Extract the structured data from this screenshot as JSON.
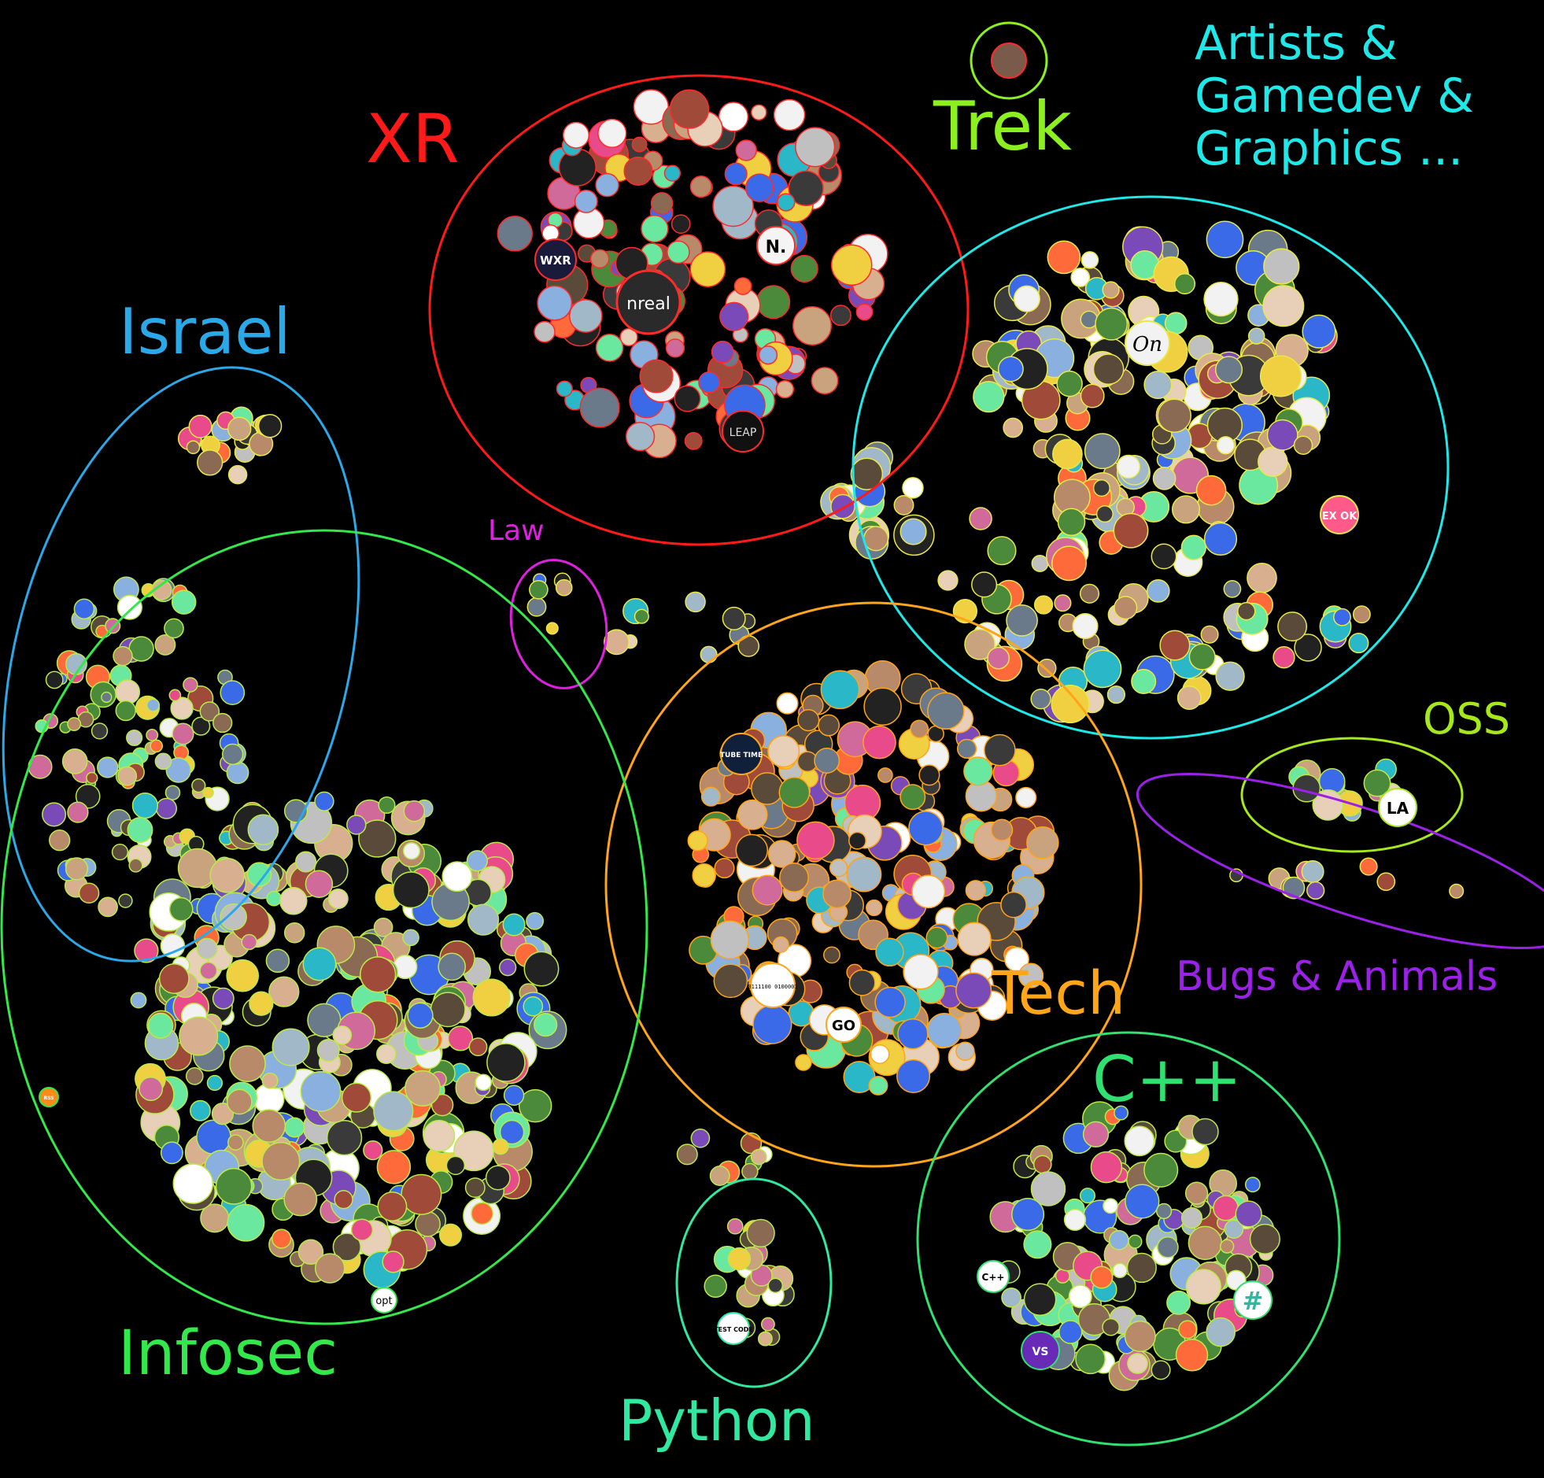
{
  "clusters": [
    {
      "id": "xr",
      "label": "XR",
      "color": "#ff1a1a"
    },
    {
      "id": "trek",
      "label": "Trek",
      "color": "#8cf020"
    },
    {
      "id": "artists",
      "label_lines": [
        "Artists &",
        "Gamedev &",
        "Graphics ..."
      ],
      "color": "#1ee8e8"
    },
    {
      "id": "israel",
      "label": "Israel",
      "color": "#2aa8e8"
    },
    {
      "id": "law",
      "label": "Law",
      "color": "#e020e0"
    },
    {
      "id": "tech",
      "label": "Tech",
      "color": "#ffa51a"
    },
    {
      "id": "oss",
      "label": "OSS",
      "color": "#a6e81a"
    },
    {
      "id": "bugs",
      "label": "Bugs & Animals",
      "color": "#9b20e8"
    },
    {
      "id": "cpp",
      "label": "C++",
      "color": "#30e070"
    },
    {
      "id": "infosec",
      "label": "Infosec",
      "color": "#33e84a"
    },
    {
      "id": "python",
      "label": "Python",
      "color": "#30e8a0"
    }
  ],
  "avatar_texts": {
    "nreal": "nreal",
    "leap": "LEAP",
    "n": "N.",
    "wxr": "WXR",
    "on": "On",
    "tube_time": "TUBE TIME",
    "go": "GO",
    "binary": "0111100 0100001",
    "test_code": "TEST CODE",
    "la": "LA",
    "opt": "opt",
    "cpp": "C++",
    "ex_ok": "EX OK",
    "hash": "#",
    "vs": "VS",
    "rss": "RSS"
  }
}
